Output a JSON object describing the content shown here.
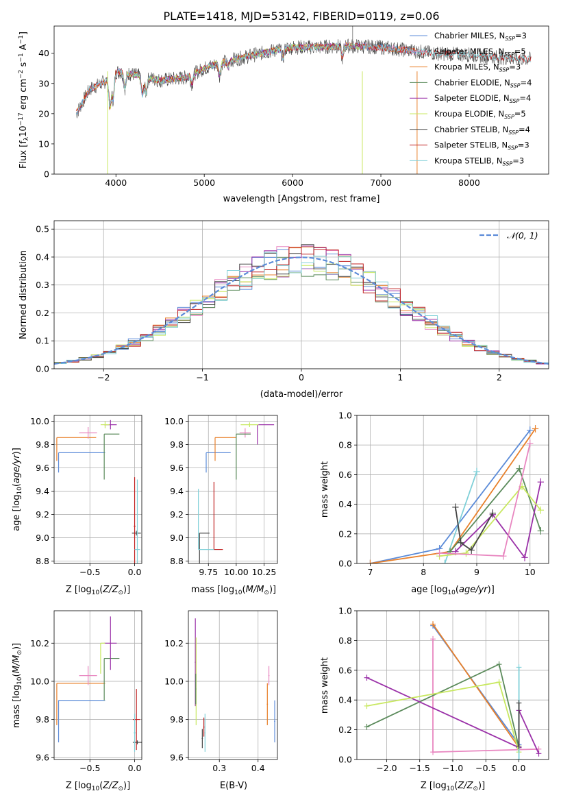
{
  "title": "PLATE=1418, MJD=53142, FIBERID=0119, z=0.06",
  "colors": {
    "Chabrier MILES": "#5b8bd8",
    "Salpeter MILES": "#e886c0",
    "Kroupa MILES": "#e8802a",
    "Chabrier ELODIE": "#5a8a5a",
    "Salpeter ELODIE": "#9a30a8",
    "Kroupa ELODIE": "#c8e860",
    "Chabrier STELIB": "#444444",
    "Salpeter STELIB": "#c02020",
    "Kroupa STELIB": "#80d0d8"
  },
  "panels": {
    "spectrum": {
      "xlabel": "wavelength [Angstrom, rest frame]",
      "ylabel": "Flux [f_λ10^-17 erg cm^-2 s^-1 A^-1]",
      "xlim": [
        3300,
        8900
      ],
      "ylim": [
        0,
        49
      ],
      "xticks": [
        4000,
        5000,
        6000,
        7000,
        8000
      ],
      "yticks": [
        0,
        10,
        20,
        30,
        40
      ],
      "legend": [
        {
          "model": "Chabrier MILES",
          "nssp": "3"
        },
        {
          "model": "Salpeter MILES",
          "nssp": "5"
        },
        {
          "model": "Kroupa MILES",
          "nssp": "3"
        },
        {
          "model": "Chabrier ELODIE",
          "nssp": "4"
        },
        {
          "model": "Salpeter ELODIE",
          "nssp": "4"
        },
        {
          "model": "Kroupa ELODIE",
          "nssp": "5"
        },
        {
          "model": "Chabrier STELIB",
          "nssp": "4"
        },
        {
          "model": "Salpeter STELIB",
          "nssp": "3"
        },
        {
          "model": "Kroupa STELIB",
          "nssp": "3"
        }
      ]
    },
    "residuals": {
      "xlabel": "(data-model)/error",
      "ylabel": "Normed distribution",
      "legend": "𝒩(0, 1)",
      "xlim": [
        -2.5,
        2.5
      ],
      "ylim": [
        0,
        0.53
      ],
      "xticks": [
        -2,
        -1,
        0,
        1,
        2
      ],
      "xticklabels": [
        "−2",
        "−1",
        "0",
        "1",
        "2"
      ],
      "yticks": [
        0.0,
        0.1,
        0.2,
        0.3,
        0.4,
        0.5
      ],
      "yticklabels": [
        "0.0",
        "0.1",
        "0.2",
        "0.3",
        "0.4",
        "0.5"
      ]
    },
    "age_Z": {
      "xlabel": "Z [log10(Z/Z⊙)]",
      "ylabel": "age  [log10(age/yr)]",
      "xlim": [
        -0.9,
        0.08
      ],
      "ylim": [
        8.78,
        10.05
      ],
      "xticks": [
        -0.5,
        0.0
      ],
      "xticklabels": [
        "−0.5",
        "0.0"
      ],
      "yticks": [
        8.8,
        9.0,
        9.2,
        9.4,
        9.6,
        9.8,
        10.0
      ],
      "yticklabels": [
        "8.8",
        "9.0",
        "9.2",
        "9.4",
        "9.6",
        "9.8",
        "10.0"
      ]
    },
    "age_mass": {
      "xlabel": "mass [log10(M/M⊙)]",
      "xlim": [
        9.57,
        10.37
      ],
      "ylim": [
        8.78,
        10.05
      ],
      "xticks": [
        9.75,
        10.0,
        10.25
      ],
      "xticklabels": [
        "9.75",
        "10.00",
        "10.25"
      ],
      "yticks": [
        8.8,
        9.0,
        9.2,
        9.4,
        9.6,
        9.8,
        10.0
      ],
      "yticklabels": [
        "8.8",
        "9.0",
        "9.2",
        "9.4",
        "9.6",
        "9.8",
        "10.0"
      ]
    },
    "weight_age": {
      "xlabel": "age  [log10(age/yr)]",
      "ylabel": "mass weight",
      "xlim": [
        6.75,
        10.35
      ],
      "ylim": [
        0,
        1.0
      ],
      "xticks": [
        7,
        8,
        9,
        10
      ],
      "xticklabels": [
        "7",
        "8",
        "9",
        "10"
      ],
      "yticks": [
        0,
        0.2,
        0.4,
        0.6,
        0.8,
        1.0
      ],
      "yticklabels": [
        "0.0",
        "0.2",
        "0.4",
        "0.6",
        "0.8",
        "1.0"
      ]
    },
    "mass_Z": {
      "xlabel": "Z [log10(Z/Z⊙)]",
      "ylabel": "mass [log10(M/M⊙)]",
      "xlim": [
        -0.9,
        0.08
      ],
      "ylim": [
        9.59,
        10.37
      ],
      "xticks": [
        -0.5,
        0.0
      ],
      "xticklabels": [
        "−0.5",
        "0.0"
      ],
      "yticks": [
        9.6,
        9.8,
        10.0,
        10.2
      ],
      "yticklabels": [
        "9.6",
        "9.8",
        "10.0",
        "10.2"
      ]
    },
    "mass_ebv": {
      "xlabel": "E(B-V)",
      "xlim": [
        0.22,
        0.45
      ],
      "ylim": [
        9.59,
        10.37
      ],
      "xticks": [
        0.3,
        0.4
      ],
      "xticklabels": [
        "0.3",
        "0.4"
      ],
      "yticks": [
        9.6,
        9.8,
        10.0,
        10.2
      ],
      "yticklabels": [
        "9.6",
        "9.8",
        "10.0",
        "10.2"
      ]
    },
    "weight_Z": {
      "xlabel": "Z [log10(Z/Z⊙)]",
      "ylabel": "mass weight",
      "xlim": [
        -2.45,
        0.45
      ],
      "ylim": [
        0,
        1.0
      ],
      "xticks": [
        -2.0,
        -1.5,
        -1.0,
        -0.5,
        0.0
      ],
      "xticklabels": [
        "−2.0",
        "−1.5",
        "−1.0",
        "−0.5",
        "0.0"
      ],
      "yticks": [
        0,
        0.2,
        0.4,
        0.6,
        0.8,
        1.0
      ],
      "yticklabels": [
        "0.0",
        "0.2",
        "0.4",
        "0.6",
        "0.8",
        "1.0"
      ]
    }
  },
  "chart_data": [
    {
      "type": "line",
      "panel": "spectrum",
      "note_series": "nine overlapping model spectra, approximate continuum",
      "x": [
        3550,
        3700,
        3900,
        4000,
        4200,
        4500,
        4800,
        5000,
        5200,
        5500,
        5800,
        6000,
        6300,
        6600,
        7000,
        7300,
        7600,
        8000,
        8400,
        8700
      ],
      "y": [
        20,
        28,
        31,
        34,
        33,
        31,
        32,
        35,
        37,
        39,
        41,
        42,
        42,
        42.5,
        42,
        41,
        40,
        39.5,
        38.5,
        38
      ]
    },
    {
      "type": "line",
      "panel": "residuals",
      "series": [
        {
          "name": "𝒩(0, 1)",
          "x": [
            -2.5,
            -2,
            -1.5,
            -1,
            -0.5,
            0,
            0.5,
            1,
            1.5,
            2,
            2.5
          ],
          "y": [
            0.018,
            0.054,
            0.13,
            0.242,
            0.352,
            0.399,
            0.352,
            0.242,
            0.13,
            0.054,
            0.018
          ]
        }
      ]
    },
    {
      "type": "scatter",
      "panel": "weight_age",
      "series": [
        {
          "name": "Chabrier MILES",
          "age": [
            7.0,
            8.3,
            10.0
          ],
          "w": [
            0.0,
            0.1,
            0.9
          ]
        },
        {
          "name": "Kroupa MILES",
          "age": [
            7.0,
            8.5,
            10.1
          ],
          "w": [
            0.0,
            0.08,
            0.91
          ]
        },
        {
          "name": "Kroupa STELIB",
          "age": [
            8.4,
            9.0,
            9.0
          ],
          "w": [
            0.0,
            0.62,
            0.62
          ]
        },
        {
          "name": "Chabrier ELODIE",
          "age": [
            8.5,
            9.8,
            10.2
          ],
          "w": [
            0.08,
            0.64,
            0.22
          ]
        },
        {
          "name": "Salpeter ELODIE",
          "age": [
            8.6,
            9.3,
            9.9,
            10.2
          ],
          "w": [
            0.08,
            0.33,
            0.04,
            0.55
          ]
        },
        {
          "name": "Kroupa ELODIE",
          "age": [
            8.3,
            8.8,
            9.85,
            10.2
          ],
          "w": [
            0.05,
            0.07,
            0.52,
            0.36
          ]
        },
        {
          "name": "Salpeter MILES",
          "age": [
            8.3,
            9.5,
            10.0
          ],
          "w": [
            0.07,
            0.05,
            0.81
          ]
        },
        {
          "name": "Chabrier STELIB",
          "age": [
            8.6,
            8.7,
            8.9,
            9.3
          ],
          "w": [
            0.38,
            0.14,
            0.09,
            0.34
          ]
        }
      ]
    },
    {
      "type": "scatter",
      "panel": "weight_Z",
      "series": [
        {
          "name": "Chabrier MILES",
          "Z": [
            -1.3,
            0.0
          ],
          "w": [
            0.9,
            0.1
          ]
        },
        {
          "name": "Kroupa MILES",
          "Z": [
            -1.3,
            0.0
          ],
          "w": [
            0.91,
            0.08
          ]
        },
        {
          "name": "Salpeter MILES",
          "Z": [
            -1.3,
            -1.3,
            0.3
          ],
          "w": [
            0.81,
            0.05,
            0.07
          ]
        },
        {
          "name": "Chabrier ELODIE",
          "Z": [
            -2.3,
            -0.3,
            0.0
          ],
          "w": [
            0.22,
            0.64,
            0.08
          ]
        },
        {
          "name": "Salpeter ELODIE",
          "Z": [
            -2.3,
            0.0,
            0.0,
            0.3
          ],
          "w": [
            0.55,
            0.08,
            0.33,
            0.04
          ]
        },
        {
          "name": "Kroupa ELODIE",
          "Z": [
            -2.3,
            -0.3,
            0.0
          ],
          "w": [
            0.36,
            0.52,
            0.05
          ]
        },
        {
          "name": "Kroupa STELIB",
          "Z": [
            0.0,
            0.0
          ],
          "w": [
            0.62,
            0.0
          ]
        },
        {
          "name": "Chabrier STELIB",
          "Z": [
            0.0,
            0.0
          ],
          "w": [
            0.38,
            0.09
          ]
        }
      ]
    }
  ]
}
